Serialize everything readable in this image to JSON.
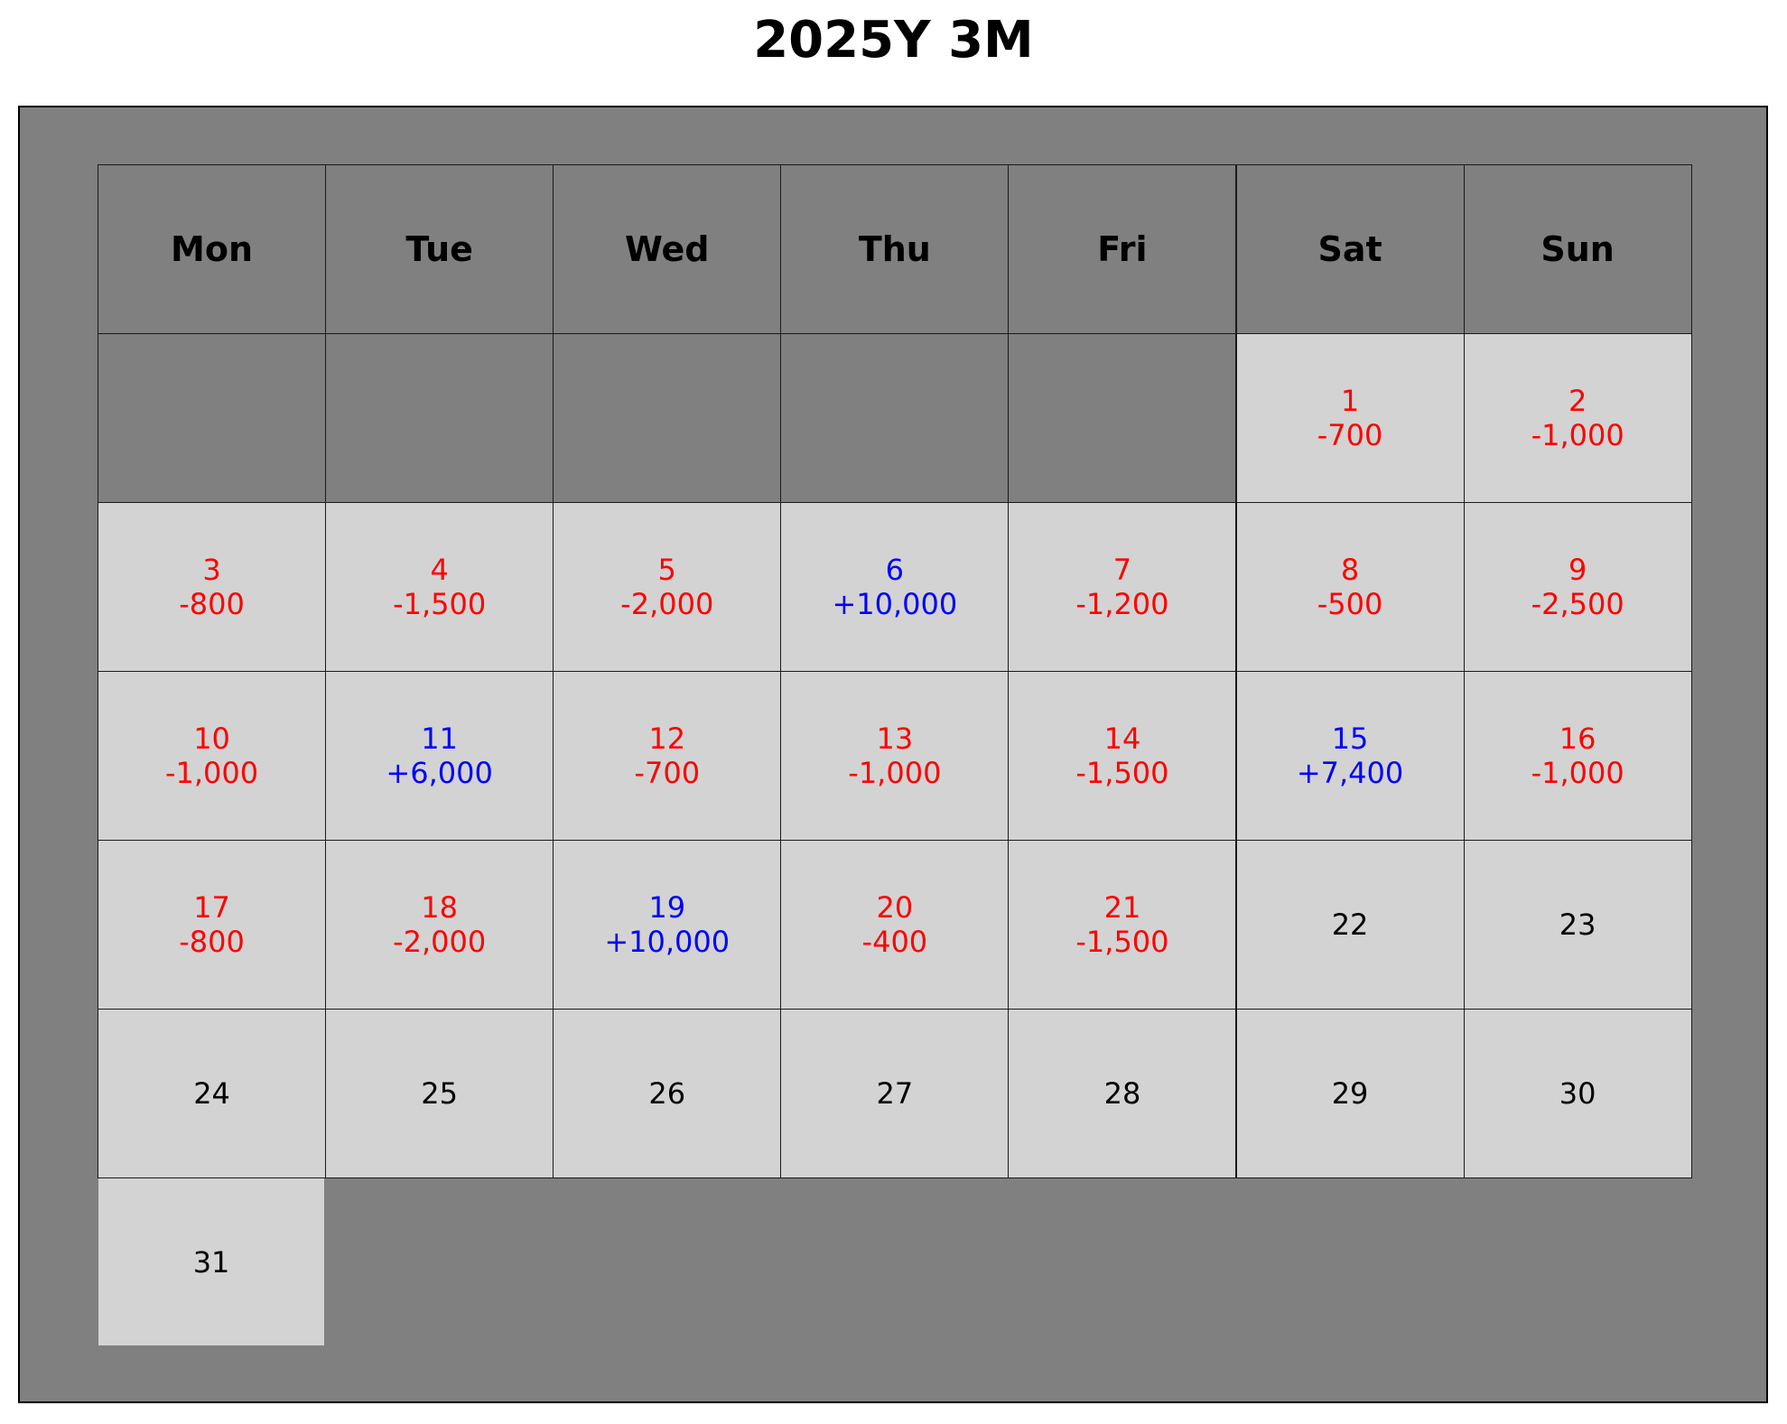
{
  "title": "2025Y 3M",
  "colors": {
    "frame_bg": "#808080",
    "header_bg": "#808080",
    "empty_bg": "#808080",
    "day_bg": "#d3d3d3",
    "positive": "#0000ff",
    "negative": "#ff0000",
    "neutral": "#000000"
  },
  "chart_data": {
    "type": "table",
    "title": "2025Y 3M",
    "weekdays": [
      "Mon",
      "Tue",
      "Wed",
      "Thu",
      "Fri",
      "Sat",
      "Sun"
    ],
    "first_weekday_index": 5,
    "days": [
      {
        "day": "1",
        "amount": "-700",
        "value": -700
      },
      {
        "day": "2",
        "amount": "-1,000",
        "value": -1000
      },
      {
        "day": "3",
        "amount": "-800",
        "value": -800
      },
      {
        "day": "4",
        "amount": "-1,500",
        "value": -1500
      },
      {
        "day": "5",
        "amount": "-2,000",
        "value": -2000
      },
      {
        "day": "6",
        "amount": "+10,000",
        "value": 10000
      },
      {
        "day": "7",
        "amount": "-1,200",
        "value": -1200
      },
      {
        "day": "8",
        "amount": "-500",
        "value": -500
      },
      {
        "day": "9",
        "amount": "-2,500",
        "value": -2500
      },
      {
        "day": "10",
        "amount": "-1,000",
        "value": -1000
      },
      {
        "day": "11",
        "amount": "+6,000",
        "value": 6000
      },
      {
        "day": "12",
        "amount": "-700",
        "value": -700
      },
      {
        "day": "13",
        "amount": "-1,000",
        "value": -1000
      },
      {
        "day": "14",
        "amount": "-1,500",
        "value": -1500
      },
      {
        "day": "15",
        "amount": "+7,400",
        "value": 7400
      },
      {
        "day": "16",
        "amount": "-1,000",
        "value": -1000
      },
      {
        "day": "17",
        "amount": "-800",
        "value": -800
      },
      {
        "day": "18",
        "amount": "-2,000",
        "value": -2000
      },
      {
        "day": "19",
        "amount": "+10,000",
        "value": 10000
      },
      {
        "day": "20",
        "amount": "-400",
        "value": -400
      },
      {
        "day": "21",
        "amount": "-1,500",
        "value": -1500
      },
      {
        "day": "22",
        "amount": "",
        "value": null
      },
      {
        "day": "23",
        "amount": "",
        "value": null
      },
      {
        "day": "24",
        "amount": "",
        "value": null
      },
      {
        "day": "25",
        "amount": "",
        "value": null
      },
      {
        "day": "26",
        "amount": "",
        "value": null
      },
      {
        "day": "27",
        "amount": "",
        "value": null
      },
      {
        "day": "28",
        "amount": "",
        "value": null
      },
      {
        "day": "29",
        "amount": "",
        "value": null
      },
      {
        "day": "30",
        "amount": "",
        "value": null
      },
      {
        "day": "31",
        "amount": "",
        "value": null
      }
    ]
  }
}
